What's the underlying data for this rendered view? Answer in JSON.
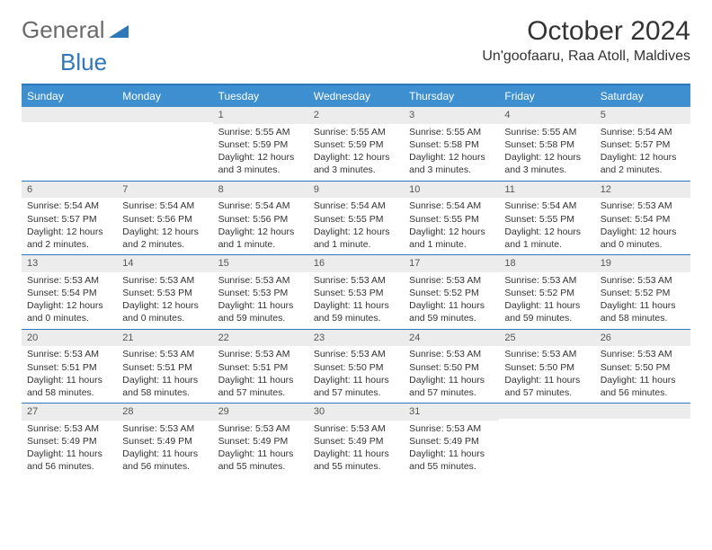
{
  "brand": {
    "part1": "General",
    "part2": "Blue"
  },
  "title": "October 2024",
  "location": "Un'goofaaru, Raa Atoll, Maldives",
  "colors": {
    "header_bar": "#3d8fcf",
    "rule": "#2f77bb",
    "daynum_bg": "#ececec",
    "text": "#333333",
    "logo_gray": "#6a6a6a",
    "logo_blue": "#2f77bb",
    "background": "#ffffff"
  },
  "days_of_week": [
    "Sunday",
    "Monday",
    "Tuesday",
    "Wednesday",
    "Thursday",
    "Friday",
    "Saturday"
  ],
  "weeks": [
    [
      null,
      null,
      {
        "n": "1",
        "sr": "Sunrise: 5:55 AM",
        "ss": "Sunset: 5:59 PM",
        "dl": "Daylight: 12 hours and 3 minutes."
      },
      {
        "n": "2",
        "sr": "Sunrise: 5:55 AM",
        "ss": "Sunset: 5:59 PM",
        "dl": "Daylight: 12 hours and 3 minutes."
      },
      {
        "n": "3",
        "sr": "Sunrise: 5:55 AM",
        "ss": "Sunset: 5:58 PM",
        "dl": "Daylight: 12 hours and 3 minutes."
      },
      {
        "n": "4",
        "sr": "Sunrise: 5:55 AM",
        "ss": "Sunset: 5:58 PM",
        "dl": "Daylight: 12 hours and 3 minutes."
      },
      {
        "n": "5",
        "sr": "Sunrise: 5:54 AM",
        "ss": "Sunset: 5:57 PM",
        "dl": "Daylight: 12 hours and 2 minutes."
      }
    ],
    [
      {
        "n": "6",
        "sr": "Sunrise: 5:54 AM",
        "ss": "Sunset: 5:57 PM",
        "dl": "Daylight: 12 hours and 2 minutes."
      },
      {
        "n": "7",
        "sr": "Sunrise: 5:54 AM",
        "ss": "Sunset: 5:56 PM",
        "dl": "Daylight: 12 hours and 2 minutes."
      },
      {
        "n": "8",
        "sr": "Sunrise: 5:54 AM",
        "ss": "Sunset: 5:56 PM",
        "dl": "Daylight: 12 hours and 1 minute."
      },
      {
        "n": "9",
        "sr": "Sunrise: 5:54 AM",
        "ss": "Sunset: 5:55 PM",
        "dl": "Daylight: 12 hours and 1 minute."
      },
      {
        "n": "10",
        "sr": "Sunrise: 5:54 AM",
        "ss": "Sunset: 5:55 PM",
        "dl": "Daylight: 12 hours and 1 minute."
      },
      {
        "n": "11",
        "sr": "Sunrise: 5:54 AM",
        "ss": "Sunset: 5:55 PM",
        "dl": "Daylight: 12 hours and 1 minute."
      },
      {
        "n": "12",
        "sr": "Sunrise: 5:53 AM",
        "ss": "Sunset: 5:54 PM",
        "dl": "Daylight: 12 hours and 0 minutes."
      }
    ],
    [
      {
        "n": "13",
        "sr": "Sunrise: 5:53 AM",
        "ss": "Sunset: 5:54 PM",
        "dl": "Daylight: 12 hours and 0 minutes."
      },
      {
        "n": "14",
        "sr": "Sunrise: 5:53 AM",
        "ss": "Sunset: 5:53 PM",
        "dl": "Daylight: 12 hours and 0 minutes."
      },
      {
        "n": "15",
        "sr": "Sunrise: 5:53 AM",
        "ss": "Sunset: 5:53 PM",
        "dl": "Daylight: 11 hours and 59 minutes."
      },
      {
        "n": "16",
        "sr": "Sunrise: 5:53 AM",
        "ss": "Sunset: 5:53 PM",
        "dl": "Daylight: 11 hours and 59 minutes."
      },
      {
        "n": "17",
        "sr": "Sunrise: 5:53 AM",
        "ss": "Sunset: 5:52 PM",
        "dl": "Daylight: 11 hours and 59 minutes."
      },
      {
        "n": "18",
        "sr": "Sunrise: 5:53 AM",
        "ss": "Sunset: 5:52 PM",
        "dl": "Daylight: 11 hours and 59 minutes."
      },
      {
        "n": "19",
        "sr": "Sunrise: 5:53 AM",
        "ss": "Sunset: 5:52 PM",
        "dl": "Daylight: 11 hours and 58 minutes."
      }
    ],
    [
      {
        "n": "20",
        "sr": "Sunrise: 5:53 AM",
        "ss": "Sunset: 5:51 PM",
        "dl": "Daylight: 11 hours and 58 minutes."
      },
      {
        "n": "21",
        "sr": "Sunrise: 5:53 AM",
        "ss": "Sunset: 5:51 PM",
        "dl": "Daylight: 11 hours and 58 minutes."
      },
      {
        "n": "22",
        "sr": "Sunrise: 5:53 AM",
        "ss": "Sunset: 5:51 PM",
        "dl": "Daylight: 11 hours and 57 minutes."
      },
      {
        "n": "23",
        "sr": "Sunrise: 5:53 AM",
        "ss": "Sunset: 5:50 PM",
        "dl": "Daylight: 11 hours and 57 minutes."
      },
      {
        "n": "24",
        "sr": "Sunrise: 5:53 AM",
        "ss": "Sunset: 5:50 PM",
        "dl": "Daylight: 11 hours and 57 minutes."
      },
      {
        "n": "25",
        "sr": "Sunrise: 5:53 AM",
        "ss": "Sunset: 5:50 PM",
        "dl": "Daylight: 11 hours and 57 minutes."
      },
      {
        "n": "26",
        "sr": "Sunrise: 5:53 AM",
        "ss": "Sunset: 5:50 PM",
        "dl": "Daylight: 11 hours and 56 minutes."
      }
    ],
    [
      {
        "n": "27",
        "sr": "Sunrise: 5:53 AM",
        "ss": "Sunset: 5:49 PM",
        "dl": "Daylight: 11 hours and 56 minutes."
      },
      {
        "n": "28",
        "sr": "Sunrise: 5:53 AM",
        "ss": "Sunset: 5:49 PM",
        "dl": "Daylight: 11 hours and 56 minutes."
      },
      {
        "n": "29",
        "sr": "Sunrise: 5:53 AM",
        "ss": "Sunset: 5:49 PM",
        "dl": "Daylight: 11 hours and 55 minutes."
      },
      {
        "n": "30",
        "sr": "Sunrise: 5:53 AM",
        "ss": "Sunset: 5:49 PM",
        "dl": "Daylight: 11 hours and 55 minutes."
      },
      {
        "n": "31",
        "sr": "Sunrise: 5:53 AM",
        "ss": "Sunset: 5:49 PM",
        "dl": "Daylight: 11 hours and 55 minutes."
      },
      null,
      null
    ]
  ]
}
